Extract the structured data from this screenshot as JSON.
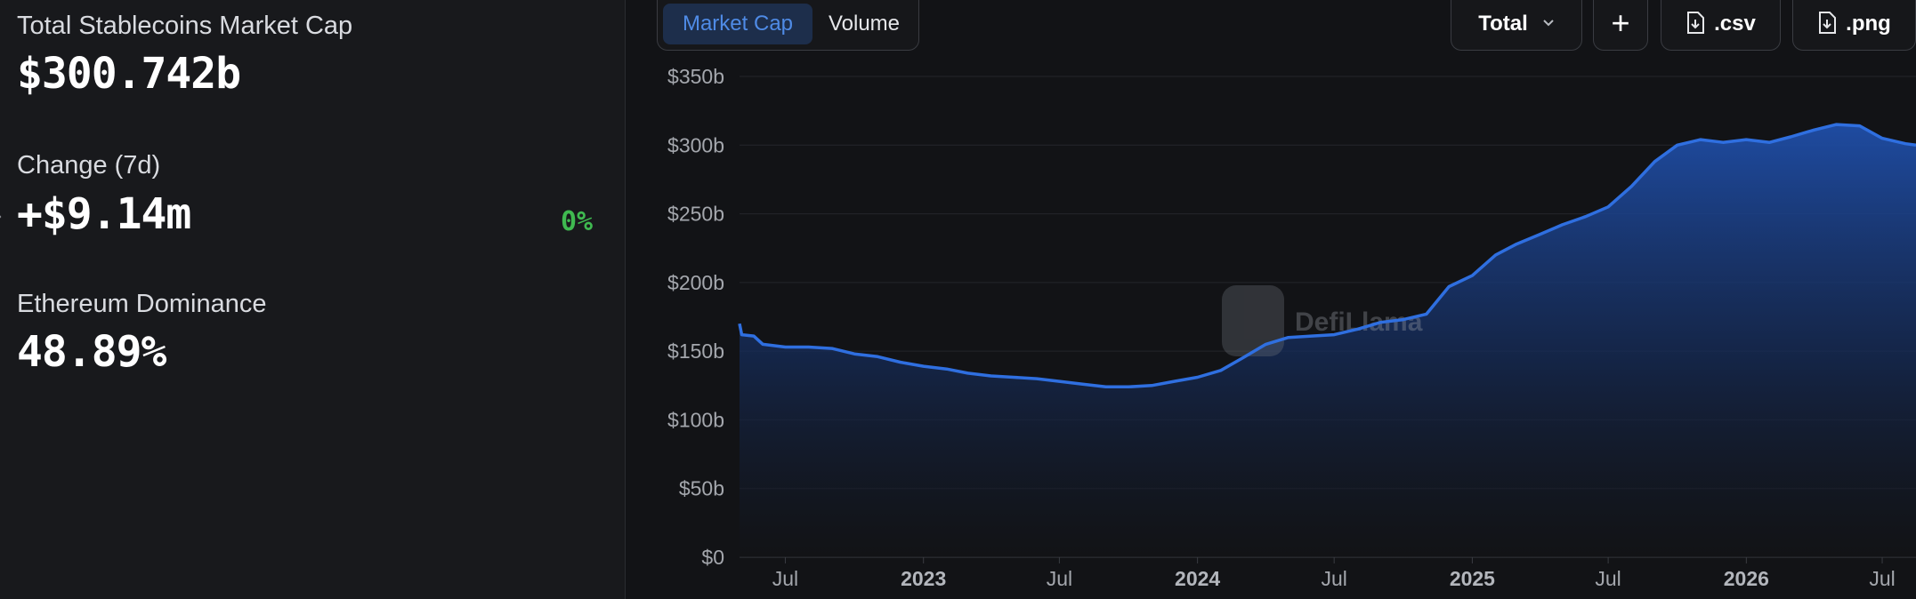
{
  "stats": {
    "total_label": "Total Stablecoins Market Cap",
    "total_value": "$300.742b",
    "change_label": "Change (7d)",
    "change_value": "+$9.14m",
    "change_pct": "0%",
    "dominance_label": "Ethereum Dominance",
    "dominance_value": "48.89%"
  },
  "toolbar": {
    "tabs": [
      "Market Cap",
      "Volume"
    ],
    "active_tab": "Market Cap",
    "dropdown_value": "Total",
    "add_label": "+",
    "csv_label": ".csv",
    "png_label": ".png"
  },
  "watermark": "DefiLlama",
  "colors": {
    "accent": "#2f6fe0",
    "positive": "#3fb950",
    "active_tab_text": "#4f8be6"
  },
  "icons": {
    "dropdown": "chevron-down-icon",
    "add": "plus-icon",
    "csv": "file-download-icon",
    "png": "file-download-icon"
  },
  "chart_data": {
    "type": "area",
    "title": "",
    "xlabel": "",
    "ylabel": "",
    "ylim": [
      0,
      350
    ],
    "y_unit": "b",
    "y_ticks": [
      "$350b",
      "$300b",
      "$250b",
      "$200b",
      "$150b",
      "$100b",
      "$50b",
      "$0"
    ],
    "y_tick_values": [
      350,
      300,
      250,
      200,
      150,
      100,
      50,
      0
    ],
    "xlim": [
      "2022-05-01",
      "2026-08-15"
    ],
    "x_ticks": [
      {
        "label": "Jul",
        "date": "2022-07-01",
        "major": false
      },
      {
        "label": "2023",
        "date": "2023-01-01",
        "major": true
      },
      {
        "label": "Jul",
        "date": "2023-07-01",
        "major": false
      },
      {
        "label": "2024",
        "date": "2024-01-01",
        "major": true
      },
      {
        "label": "Jul",
        "date": "2024-07-01",
        "major": false
      },
      {
        "label": "2025",
        "date": "2025-01-01",
        "major": true
      },
      {
        "label": "Jul",
        "date": "2025-07-01",
        "major": false
      },
      {
        "label": "2026",
        "date": "2026-01-01",
        "major": true
      },
      {
        "label": "Jul",
        "date": "2026-07-01",
        "major": false
      }
    ],
    "grid": true,
    "series": [
      {
        "points": [
          [
            "2022-05-01",
            170
          ],
          [
            "2022-05-04",
            162
          ],
          [
            "2022-05-20",
            161
          ],
          [
            "2022-06-01",
            155
          ],
          [
            "2022-07-01",
            153
          ],
          [
            "2022-08-01",
            153
          ],
          [
            "2022-09-01",
            152
          ],
          [
            "2022-10-01",
            148
          ],
          [
            "2022-11-01",
            146
          ],
          [
            "2022-12-01",
            142
          ],
          [
            "2023-01-01",
            139
          ],
          [
            "2023-02-01",
            137
          ],
          [
            "2023-03-01",
            134
          ],
          [
            "2023-04-01",
            132
          ],
          [
            "2023-05-01",
            131
          ],
          [
            "2023-06-01",
            130
          ],
          [
            "2023-07-01",
            128
          ],
          [
            "2023-08-01",
            126
          ],
          [
            "2023-09-01",
            124
          ],
          [
            "2023-10-01",
            124
          ],
          [
            "2023-11-01",
            125
          ],
          [
            "2023-12-01",
            128
          ],
          [
            "2024-01-01",
            131
          ],
          [
            "2024-02-01",
            136
          ],
          [
            "2024-03-01",
            145
          ],
          [
            "2024-04-01",
            155
          ],
          [
            "2024-05-01",
            160
          ],
          [
            "2024-06-01",
            161
          ],
          [
            "2024-07-01",
            162
          ],
          [
            "2024-08-01",
            166
          ],
          [
            "2024-09-01",
            171
          ],
          [
            "2024-10-01",
            173
          ],
          [
            "2024-11-01",
            177
          ],
          [
            "2024-12-01",
            197
          ],
          [
            "2025-01-01",
            205
          ],
          [
            "2025-02-01",
            220
          ],
          [
            "2025-03-01",
            228
          ],
          [
            "2025-04-01",
            235
          ],
          [
            "2025-05-01",
            242
          ],
          [
            "2025-06-01",
            248
          ],
          [
            "2025-07-01",
            255
          ],
          [
            "2025-08-01",
            270
          ],
          [
            "2025-09-01",
            288
          ],
          [
            "2025-10-01",
            300
          ],
          [
            "2025-11-01",
            304
          ],
          [
            "2025-12-01",
            302
          ],
          [
            "2026-01-01",
            304
          ],
          [
            "2026-02-01",
            302
          ],
          [
            "2026-03-01",
            306
          ],
          [
            "2026-04-01",
            311
          ],
          [
            "2026-05-01",
            315
          ],
          [
            "2026-06-01",
            314
          ],
          [
            "2026-07-01",
            305
          ],
          [
            "2026-08-01",
            301
          ],
          [
            "2026-08-15",
            300
          ]
        ]
      }
    ]
  }
}
